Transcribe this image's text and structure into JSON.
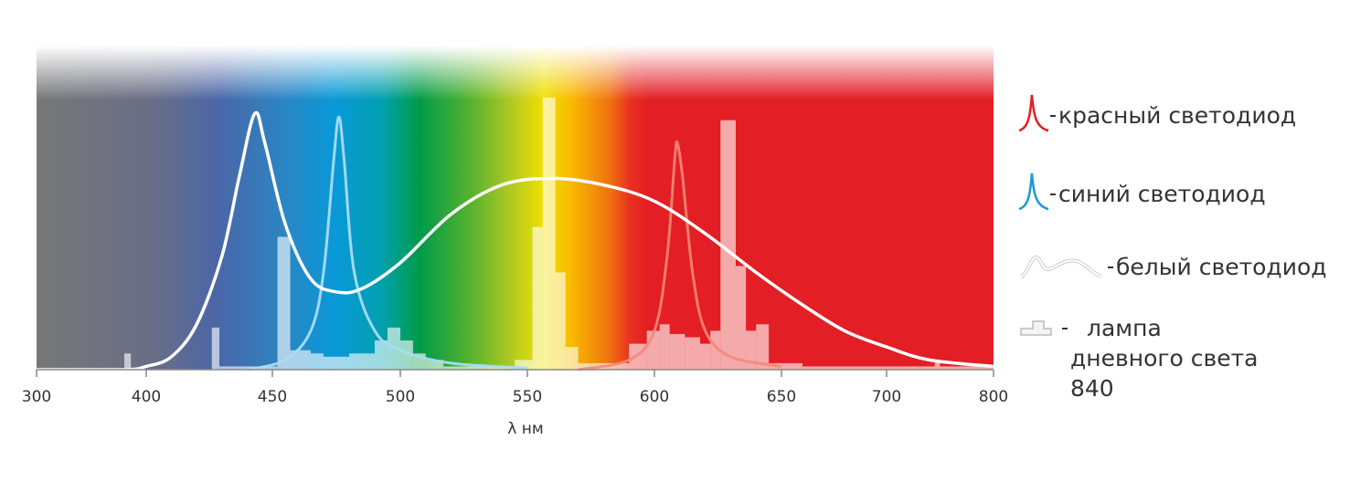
{
  "chart_data": {
    "type": "line",
    "x_label": "λ нм",
    "xlim": [
      300,
      800
    ],
    "xticks": [
      300,
      400,
      450,
      500,
      550,
      600,
      650,
      700,
      800
    ],
    "ylim": [
      0,
      1
    ],
    "series": [
      {
        "name": "красный светодиод",
        "color": "#e31e24",
        "x": [
          570,
          590,
          600,
          605,
          608,
          609,
          611,
          615,
          620,
          630,
          650
        ],
        "values": [
          0,
          0.03,
          0.12,
          0.35,
          0.65,
          0.7,
          0.6,
          0.3,
          0.12,
          0.04,
          0.01
        ]
      },
      {
        "name": "синий светодиод",
        "color": "#1a9ad6",
        "x": [
          440,
          455,
          465,
          470,
          474,
          476,
          478,
          482,
          490,
          500,
          520,
          550
        ],
        "values": [
          0,
          0.03,
          0.12,
          0.3,
          0.65,
          0.78,
          0.65,
          0.3,
          0.12,
          0.06,
          0.02,
          0.005
        ]
      },
      {
        "name": "белый светодиод",
        "color": "#ffffff",
        "x": [
          300,
          380,
          400,
          410,
          420,
          430,
          437,
          443,
          447,
          455,
          465,
          475,
          485,
          500,
          520,
          540,
          560,
          580,
          600,
          620,
          640,
          660,
          680,
          700,
          740,
          800
        ],
        "values": [
          0,
          0,
          0.01,
          0.04,
          0.14,
          0.35,
          0.6,
          0.79,
          0.7,
          0.45,
          0.28,
          0.24,
          0.25,
          0.33,
          0.48,
          0.57,
          0.59,
          0.57,
          0.52,
          0.42,
          0.3,
          0.2,
          0.12,
          0.07,
          0.03,
          0.01
        ]
      }
    ],
    "histogram": {
      "name": "лампа дневного света 840",
      "color": "#ffffff",
      "bins": [
        380,
        386,
        426,
        429,
        452,
        457,
        465,
        470,
        480,
        490,
        495,
        500,
        505,
        510,
        517,
        545,
        552,
        556,
        561,
        565,
        570,
        590,
        597,
        602,
        606,
        612,
        618,
        622,
        626,
        632,
        636,
        640,
        645,
        655,
        660,
        700,
        745,
        750,
        800
      ],
      "counts": [
        0.05,
        0,
        0.13,
        0.01,
        0.41,
        0.06,
        0.05,
        0.04,
        0.05,
        0.09,
        0.13,
        0.09,
        0.05,
        0.03,
        0.01,
        0.03,
        0.44,
        0.84,
        0.3,
        0.07,
        0.02,
        0.08,
        0.12,
        0.14,
        0.11,
        0.1,
        0.08,
        0.12,
        0.77,
        0.32,
        0.12,
        0.14,
        0.02,
        0.02,
        0.01,
        0.01,
        0.03,
        0.01
      ]
    }
  }
}
